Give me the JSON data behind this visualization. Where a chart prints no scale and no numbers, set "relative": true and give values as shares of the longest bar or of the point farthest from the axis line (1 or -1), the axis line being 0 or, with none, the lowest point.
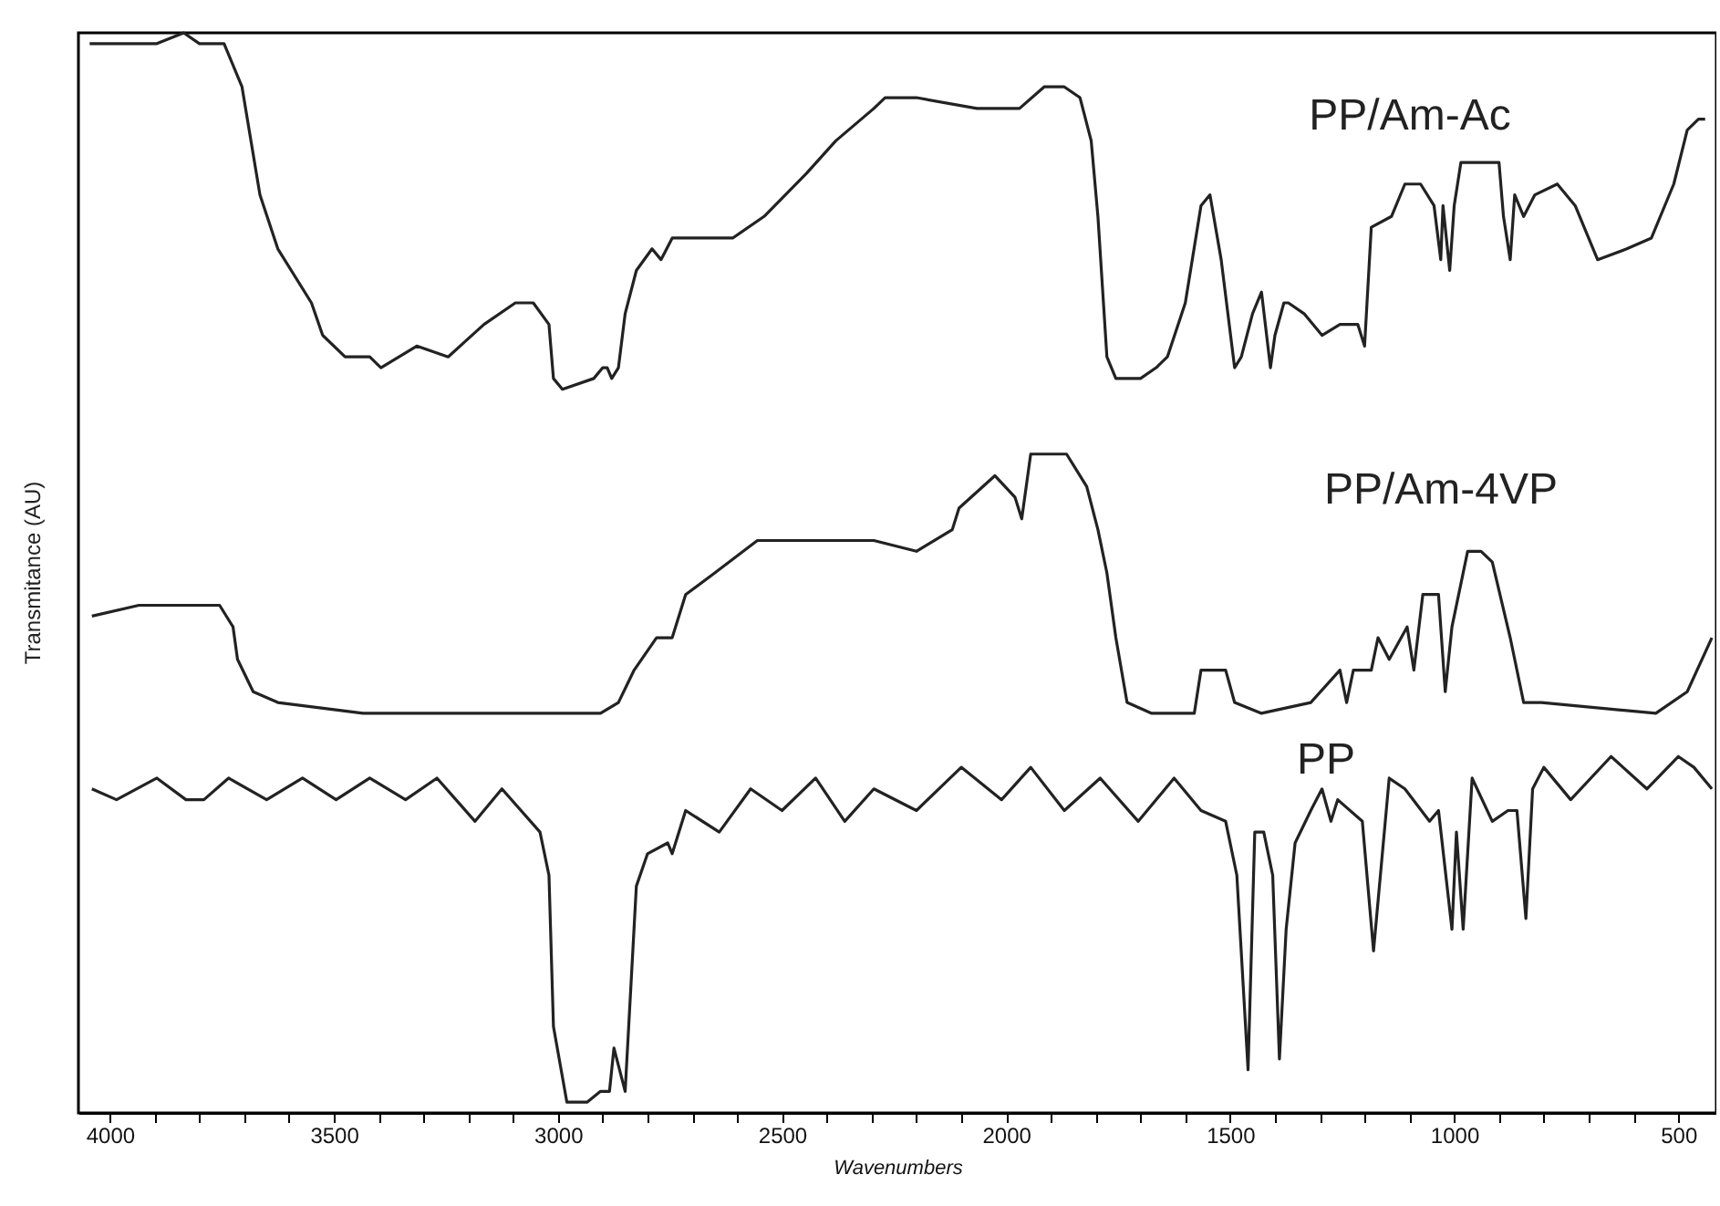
{
  "chart_data": {
    "type": "line",
    "xlabel": "Wavenumbers",
    "ylabel": "Transmitance (AU)",
    "relative": true,
    "xlim": [
      4070,
      415
    ],
    "xticks": [
      {
        "value": 4000,
        "label": "4000"
      },
      {
        "value": 3900,
        "label": null
      },
      {
        "value": 3800,
        "label": null
      },
      {
        "value": 3700,
        "label": null
      },
      {
        "value": 3600,
        "label": null
      },
      {
        "value": 3500,
        "label": "3500"
      },
      {
        "value": 3400,
        "label": null
      },
      {
        "value": 3300,
        "label": null
      },
      {
        "value": 3200,
        "label": null
      },
      {
        "value": 3100,
        "label": null
      },
      {
        "value": 3000,
        "label": "3000"
      },
      {
        "value": 2900,
        "label": null
      },
      {
        "value": 2800,
        "label": null
      },
      {
        "value": 2700,
        "label": null
      },
      {
        "value": 2600,
        "label": null
      },
      {
        "value": 2500,
        "label": "2500"
      },
      {
        "value": 2400,
        "label": null
      },
      {
        "value": 2300,
        "label": null
      },
      {
        "value": 2200,
        "label": null
      },
      {
        "value": 2100,
        "label": null
      },
      {
        "value": 2000,
        "label": "2000"
      },
      {
        "value": 1900,
        "label": null
      },
      {
        "value": 1800,
        "label": null
      },
      {
        "value": 1700,
        "label": null
      },
      {
        "value": 1600,
        "label": null
      },
      {
        "value": 1500,
        "label": "1500"
      },
      {
        "value": 1400,
        "label": null
      },
      {
        "value": 1300,
        "label": null
      },
      {
        "value": 1200,
        "label": null
      },
      {
        "value": 1100,
        "label": null
      },
      {
        "value": 1000,
        "label": "1000"
      },
      {
        "value": 900,
        "label": null
      },
      {
        "value": 800,
        "label": null
      },
      {
        "value": 700,
        "label": null
      },
      {
        "value": 600,
        "label": null
      },
      {
        "value": 500,
        "label": "500"
      }
    ],
    "grid": false,
    "marker": "none",
    "line_style": "solid",
    "series": [
      {
        "name": "PP/Am-Ac",
        "color": "#222222",
        "x": [
          4045,
          3895,
          3835,
          3800,
          3745,
          3705,
          3665,
          3625,
          3550,
          3525,
          3475,
          3420,
          3395,
          3315,
          3245,
          3165,
          3095,
          3055,
          3020,
          3010,
          2990,
          2920,
          2900,
          2890,
          2880,
          2865,
          2850,
          2825,
          2790,
          2770,
          2745,
          2610,
          2540,
          2445,
          2380,
          2295,
          2270,
          2200,
          2065,
          1970,
          1915,
          1870,
          1835,
          1810,
          1795,
          1775,
          1755,
          1700,
          1665,
          1640,
          1600,
          1565,
          1545,
          1520,
          1490,
          1475,
          1450,
          1430,
          1410,
          1400,
          1380,
          1370,
          1335,
          1295,
          1255,
          1215,
          1200,
          1185,
          1140,
          1110,
          1075,
          1045,
          1030,
          1025,
          1010,
          1000,
          985,
          940,
          920,
          900,
          890,
          875,
          865,
          845,
          820,
          770,
          730,
          680,
          615,
          560,
          510,
          480,
          455,
          440
        ],
        "values": [
          0.99,
          0.99,
          1.0,
          0.99,
          0.99,
          0.95,
          0.85,
          0.8,
          0.75,
          0.72,
          0.7,
          0.7,
          0.69,
          0.71,
          0.7,
          0.73,
          0.75,
          0.75,
          0.73,
          0.68,
          0.67,
          0.68,
          0.69,
          0.69,
          0.68,
          0.69,
          0.74,
          0.78,
          0.8,
          0.79,
          0.81,
          0.81,
          0.83,
          0.87,
          0.9,
          0.93,
          0.94,
          0.94,
          0.93,
          0.93,
          0.95,
          0.95,
          0.94,
          0.9,
          0.83,
          0.7,
          0.68,
          0.68,
          0.69,
          0.7,
          0.75,
          0.84,
          0.85,
          0.79,
          0.69,
          0.7,
          0.74,
          0.76,
          0.69,
          0.72,
          0.75,
          0.75,
          0.74,
          0.72,
          0.73,
          0.73,
          0.71,
          0.82,
          0.83,
          0.86,
          0.86,
          0.84,
          0.79,
          0.84,
          0.78,
          0.84,
          0.88,
          0.88,
          0.88,
          0.88,
          0.83,
          0.79,
          0.85,
          0.83,
          0.85,
          0.86,
          0.84,
          0.79,
          0.8,
          0.81,
          0.86,
          0.91,
          0.92,
          0.92
        ]
      },
      {
        "name": "PP/Am-4VP",
        "color": "#222222",
        "x": [
          4040,
          3935,
          3835,
          3755,
          3725,
          3715,
          3680,
          3625,
          3435,
          2905,
          2865,
          2830,
          2780,
          2745,
          2715,
          2650,
          2555,
          2420,
          2295,
          2200,
          2120,
          2105,
          2025,
          1980,
          1965,
          1945,
          1925,
          1890,
          1865,
          1820,
          1795,
          1775,
          1755,
          1730,
          1675,
          1580,
          1565,
          1545,
          1510,
          1490,
          1430,
          1320,
          1255,
          1240,
          1225,
          1185,
          1170,
          1145,
          1105,
          1090,
          1070,
          1035,
          1020,
          1005,
          970,
          940,
          915,
          875,
          845,
          805,
          550,
          480,
          425
        ],
        "values": [
          0.46,
          0.47,
          0.47,
          0.47,
          0.45,
          0.42,
          0.39,
          0.38,
          0.37,
          0.37,
          0.38,
          0.41,
          0.44,
          0.44,
          0.48,
          0.5,
          0.53,
          0.53,
          0.53,
          0.52,
          0.54,
          0.56,
          0.59,
          0.57,
          0.55,
          0.61,
          0.61,
          0.61,
          0.61,
          0.58,
          0.54,
          0.5,
          0.44,
          0.38,
          0.37,
          0.37,
          0.41,
          0.41,
          0.41,
          0.38,
          0.37,
          0.38,
          0.41,
          0.38,
          0.41,
          0.41,
          0.44,
          0.42,
          0.45,
          0.41,
          0.48,
          0.48,
          0.39,
          0.45,
          0.52,
          0.52,
          0.51,
          0.44,
          0.38,
          0.38,
          0.37,
          0.39,
          0.44
        ]
      },
      {
        "name": "PP",
        "color": "#222222",
        "x": [
          4040,
          3985,
          3895,
          3830,
          3790,
          3735,
          3650,
          3570,
          3495,
          3420,
          3340,
          3270,
          3185,
          3125,
          3040,
          3020,
          3010,
          2980,
          2935,
          2905,
          2885,
          2875,
          2850,
          2825,
          2800,
          2755,
          2745,
          2715,
          2640,
          2570,
          2500,
          2425,
          2360,
          2295,
          2200,
          2100,
          2010,
          1945,
          1870,
          1790,
          1705,
          1625,
          1565,
          1510,
          1485,
          1460,
          1445,
          1425,
          1405,
          1390,
          1375,
          1355,
          1320,
          1295,
          1275,
          1260,
          1205,
          1180,
          1145,
          1110,
          1055,
          1035,
          1005,
          995,
          980,
          960,
          915,
          880,
          860,
          840,
          825,
          800,
          740,
          650,
          570,
          500,
          465,
          425
        ],
        "values": [
          0.3,
          0.29,
          0.31,
          0.29,
          0.29,
          0.31,
          0.29,
          0.31,
          0.29,
          0.31,
          0.29,
          0.31,
          0.27,
          0.3,
          0.26,
          0.22,
          0.08,
          0.01,
          0.01,
          0.02,
          0.02,
          0.06,
          0.02,
          0.21,
          0.24,
          0.25,
          0.24,
          0.28,
          0.26,
          0.3,
          0.28,
          0.31,
          0.27,
          0.3,
          0.28,
          0.32,
          0.29,
          0.32,
          0.28,
          0.31,
          0.27,
          0.31,
          0.28,
          0.27,
          0.22,
          0.04,
          0.26,
          0.26,
          0.22,
          0.05,
          0.17,
          0.25,
          0.28,
          0.3,
          0.27,
          0.29,
          0.27,
          0.15,
          0.31,
          0.3,
          0.27,
          0.28,
          0.17,
          0.26,
          0.17,
          0.31,
          0.27,
          0.28,
          0.28,
          0.18,
          0.3,
          0.32,
          0.29,
          0.33,
          0.3,
          0.33,
          0.32,
          0.3
        ]
      }
    ]
  }
}
